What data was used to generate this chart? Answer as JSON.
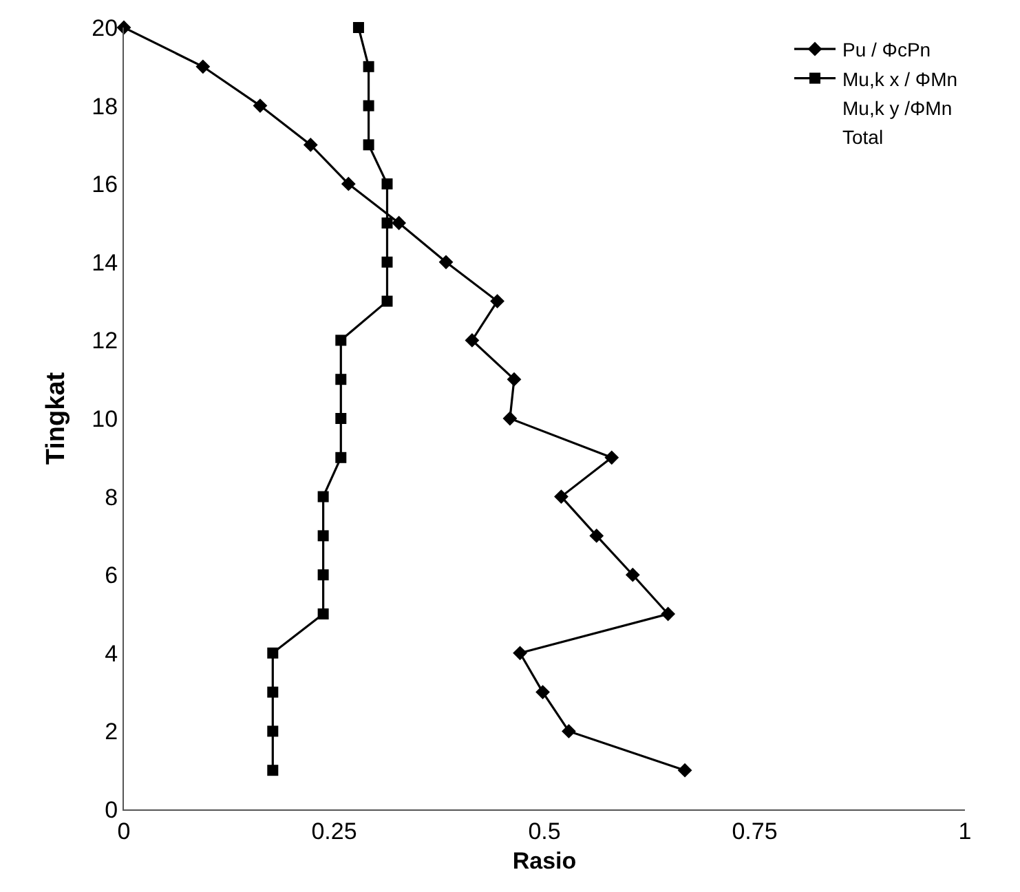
{
  "chart_data": {
    "type": "line",
    "xlabel": "Rasio",
    "ylabel": "Tingkat",
    "series": [
      {
        "name": "Pu / ΦcPn",
        "color": "#000000",
        "marker": "diamond",
        "x": [
          0.667,
          0.529,
          0.498,
          0.471,
          0.647,
          0.605,
          0.562,
          0.52,
          0.58,
          0.459,
          0.464,
          0.414,
          0.444,
          0.383,
          0.327,
          0.267,
          0.222,
          0.162,
          0.094,
          0.0
        ],
        "values": [
          1,
          2,
          3,
          4,
          5,
          6,
          7,
          8,
          9,
          10,
          11,
          12,
          13,
          14,
          15,
          16,
          17,
          18,
          19,
          20
        ]
      },
      {
        "name": "Mu,k x / ΦMn",
        "color": "#000000",
        "marker": "square",
        "x": [
          0.177,
          0.177,
          0.177,
          0.177,
          0.237,
          0.237,
          0.237,
          0.237,
          0.258,
          0.258,
          0.258,
          0.258,
          0.313,
          0.313,
          0.313,
          0.313,
          0.291,
          0.291,
          0.291,
          0.279
        ],
        "values": [
          1,
          2,
          3,
          4,
          5,
          6,
          7,
          8,
          9,
          10,
          11,
          12,
          13,
          14,
          15,
          16,
          17,
          18,
          19,
          20
        ]
      },
      {
        "name": "Mu,k y /ΦMn",
        "marker": "none",
        "x": [
          null
        ],
        "values": [
          null
        ]
      },
      {
        "name": "Total",
        "marker": "none",
        "x": [
          null
        ],
        "values": [
          null
        ]
      }
    ],
    "xlim": [
      0,
      1
    ],
    "xticks": [
      0,
      0.25,
      0.5,
      0.75,
      1
    ],
    "ylim": [
      0,
      20
    ],
    "yticks": [
      0,
      2,
      4,
      6,
      8,
      10,
      12,
      14,
      16,
      18,
      20
    ],
    "grid": false,
    "legend": "top right",
    "line_style": "solid"
  }
}
